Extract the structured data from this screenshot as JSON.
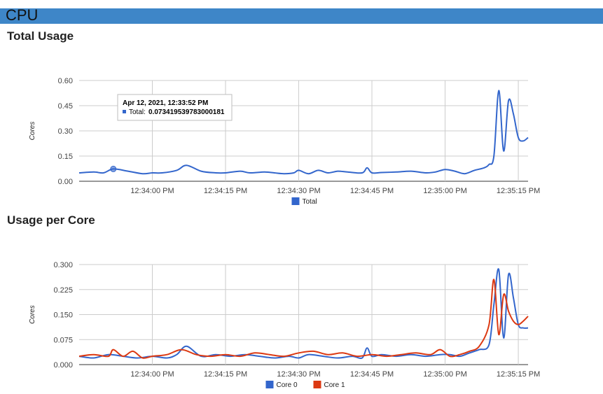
{
  "header": {
    "title": "CPU",
    "bar_color": "#3e86c8"
  },
  "sections": {
    "total_title": "Total Usage",
    "core_title": "Usage per Core"
  },
  "tooltip": {
    "title": "Apr 12, 2021, 12:33:52 PM",
    "label": "Total:",
    "value": "0.073419539783000181"
  },
  "chart_data": [
    {
      "type": "line",
      "title": "Total Usage",
      "ylabel": "Cores",
      "xlabel": "",
      "ylim": [
        0,
        0.6
      ],
      "yticks": [
        "0.00",
        "0.15",
        "0.30",
        "0.45",
        "0.60"
      ],
      "yticks_values": [
        0,
        0.15,
        0.3,
        0.45,
        0.6
      ],
      "xlim": [
        "12:33:45 PM",
        "12:35:17 PM"
      ],
      "xticks": [
        "12:34:00 PM",
        "12:34:15 PM",
        "12:34:30 PM",
        "12:34:45 PM",
        "12:35:00 PM",
        "12:35:15 PM"
      ],
      "grid": true,
      "legend_position": "bottom",
      "highlight": {
        "x": "12:33:52 PM",
        "y": 0.0734
      },
      "series": [
        {
          "name": "Total",
          "color": "#3366cc",
          "x": [
            "12:33:45 PM",
            "12:33:48 PM",
            "12:33:50 PM",
            "12:33:52 PM",
            "12:33:55 PM",
            "12:33:58 PM",
            "12:34:00 PM",
            "12:34:02 PM",
            "12:34:05 PM",
            "12:34:07 PM",
            "12:34:10 PM",
            "12:34:13 PM",
            "12:34:15 PM",
            "12:34:18 PM",
            "12:34:20 PM",
            "12:34:23 PM",
            "12:34:25 PM",
            "12:34:27 PM",
            "12:34:29 PM",
            "12:34:30 PM",
            "12:34:32 PM",
            "12:34:34 PM",
            "12:34:36 PM",
            "12:34:38 PM",
            "12:34:40 PM",
            "12:34:43 PM",
            "12:34:44 PM",
            "12:34:45 PM",
            "12:34:47 PM",
            "12:34:50 PM",
            "12:34:53 PM",
            "12:34:56 PM",
            "12:34:58 PM",
            "12:35:00 PM",
            "12:35:02 PM",
            "12:35:04 PM",
            "12:35:06 PM",
            "12:35:08 PM",
            "12:35:09 PM",
            "12:35:10 PM",
            "12:35:11 PM",
            "12:35:12 PM",
            "12:35:13 PM",
            "12:35:14 PM",
            "12:35:15 PM",
            "12:35:16 PM",
            "12:35:17 PM"
          ],
          "values": [
            0.05,
            0.055,
            0.05,
            0.0734,
            0.06,
            0.045,
            0.05,
            0.05,
            0.065,
            0.095,
            0.06,
            0.05,
            0.05,
            0.06,
            0.05,
            0.055,
            0.05,
            0.045,
            0.05,
            0.065,
            0.045,
            0.065,
            0.05,
            0.06,
            0.055,
            0.05,
            0.08,
            0.05,
            0.052,
            0.055,
            0.06,
            0.05,
            0.055,
            0.07,
            0.06,
            0.045,
            0.065,
            0.08,
            0.1,
            0.15,
            0.54,
            0.18,
            0.48,
            0.4,
            0.26,
            0.24,
            0.26
          ]
        }
      ]
    },
    {
      "type": "line",
      "title": "Usage per Core",
      "ylabel": "Cores",
      "xlabel": "",
      "ylim": [
        0,
        0.3
      ],
      "yticks": [
        "0.000",
        "0.075",
        "0.150",
        "0.225",
        "0.300"
      ],
      "yticks_values": [
        0,
        0.075,
        0.15,
        0.225,
        0.3
      ],
      "xlim": [
        "12:33:45 PM",
        "12:35:17 PM"
      ],
      "xticks": [
        "12:34:00 PM",
        "12:34:15 PM",
        "12:34:30 PM",
        "12:34:45 PM",
        "12:35:00 PM",
        "12:35:15 PM"
      ],
      "grid": true,
      "legend_position": "bottom",
      "series": [
        {
          "name": "Core 0",
          "color": "#3366cc",
          "x": [
            "12:33:45 PM",
            "12:33:48 PM",
            "12:33:51 PM",
            "12:33:54 PM",
            "12:33:57 PM",
            "12:34:00 PM",
            "12:34:03 PM",
            "12:34:05 PM",
            "12:34:07 PM",
            "12:34:10 PM",
            "12:34:13 PM",
            "12:34:16 PM",
            "12:34:19 PM",
            "12:34:22 PM",
            "12:34:25 PM",
            "12:34:28 PM",
            "12:34:30 PM",
            "12:34:32 PM",
            "12:34:35 PM",
            "12:34:38 PM",
            "12:34:41 PM",
            "12:34:43 PM",
            "12:34:44 PM",
            "12:34:45 PM",
            "12:34:47 PM",
            "12:34:50 PM",
            "12:34:53 PM",
            "12:34:56 PM",
            "12:34:59 PM",
            "12:35:01 PM",
            "12:35:03 PM",
            "12:35:05 PM",
            "12:35:07 PM",
            "12:35:09 PM",
            "12:35:10 PM",
            "12:35:11 PM",
            "12:35:12 PM",
            "12:35:13 PM",
            "12:35:14 PM",
            "12:35:15 PM",
            "12:35:16 PM",
            "12:35:17 PM"
          ],
          "values": [
            0.025,
            0.02,
            0.03,
            0.025,
            0.02,
            0.025,
            0.02,
            0.03,
            0.055,
            0.025,
            0.03,
            0.025,
            0.03,
            0.025,
            0.02,
            0.025,
            0.02,
            0.03,
            0.025,
            0.02,
            0.025,
            0.02,
            0.05,
            0.025,
            0.03,
            0.025,
            0.03,
            0.025,
            0.03,
            0.03,
            0.025,
            0.035,
            0.045,
            0.06,
            0.18,
            0.285,
            0.08,
            0.27,
            0.2,
            0.12,
            0.11,
            0.11
          ]
        },
        {
          "name": "Core 1",
          "color": "#dc3912",
          "x": [
            "12:33:45 PM",
            "12:33:48 PM",
            "12:33:51 PM",
            "12:33:52 PM",
            "12:33:54 PM",
            "12:33:56 PM",
            "12:33:58 PM",
            "12:34:00 PM",
            "12:34:03 PM",
            "12:34:06 PM",
            "12:34:09 PM",
            "12:34:12 PM",
            "12:34:15 PM",
            "12:34:18 PM",
            "12:34:21 PM",
            "12:34:24 PM",
            "12:34:27 PM",
            "12:34:30 PM",
            "12:34:33 PM",
            "12:34:36 PM",
            "12:34:39 PM",
            "12:34:42 PM",
            "12:34:45 PM",
            "12:34:48 PM",
            "12:34:51 PM",
            "12:34:54 PM",
            "12:34:57 PM",
            "12:34:59 PM",
            "12:35:01 PM",
            "12:35:03 PM",
            "12:35:05 PM",
            "12:35:07 PM",
            "12:35:09 PM",
            "12:35:10 PM",
            "12:35:11 PM",
            "12:35:12 PM",
            "12:35:13 PM",
            "12:35:14 PM",
            "12:35:15 PM",
            "12:35:16 PM",
            "12:35:17 PM"
          ],
          "values": [
            0.025,
            0.03,
            0.025,
            0.045,
            0.025,
            0.04,
            0.02,
            0.025,
            0.03,
            0.045,
            0.03,
            0.025,
            0.03,
            0.025,
            0.035,
            0.03,
            0.025,
            0.035,
            0.04,
            0.03,
            0.035,
            0.025,
            0.03,
            0.025,
            0.03,
            0.035,
            0.03,
            0.045,
            0.025,
            0.03,
            0.04,
            0.055,
            0.12,
            0.255,
            0.09,
            0.21,
            0.16,
            0.13,
            0.12,
            0.13,
            0.145
          ]
        }
      ]
    }
  ]
}
